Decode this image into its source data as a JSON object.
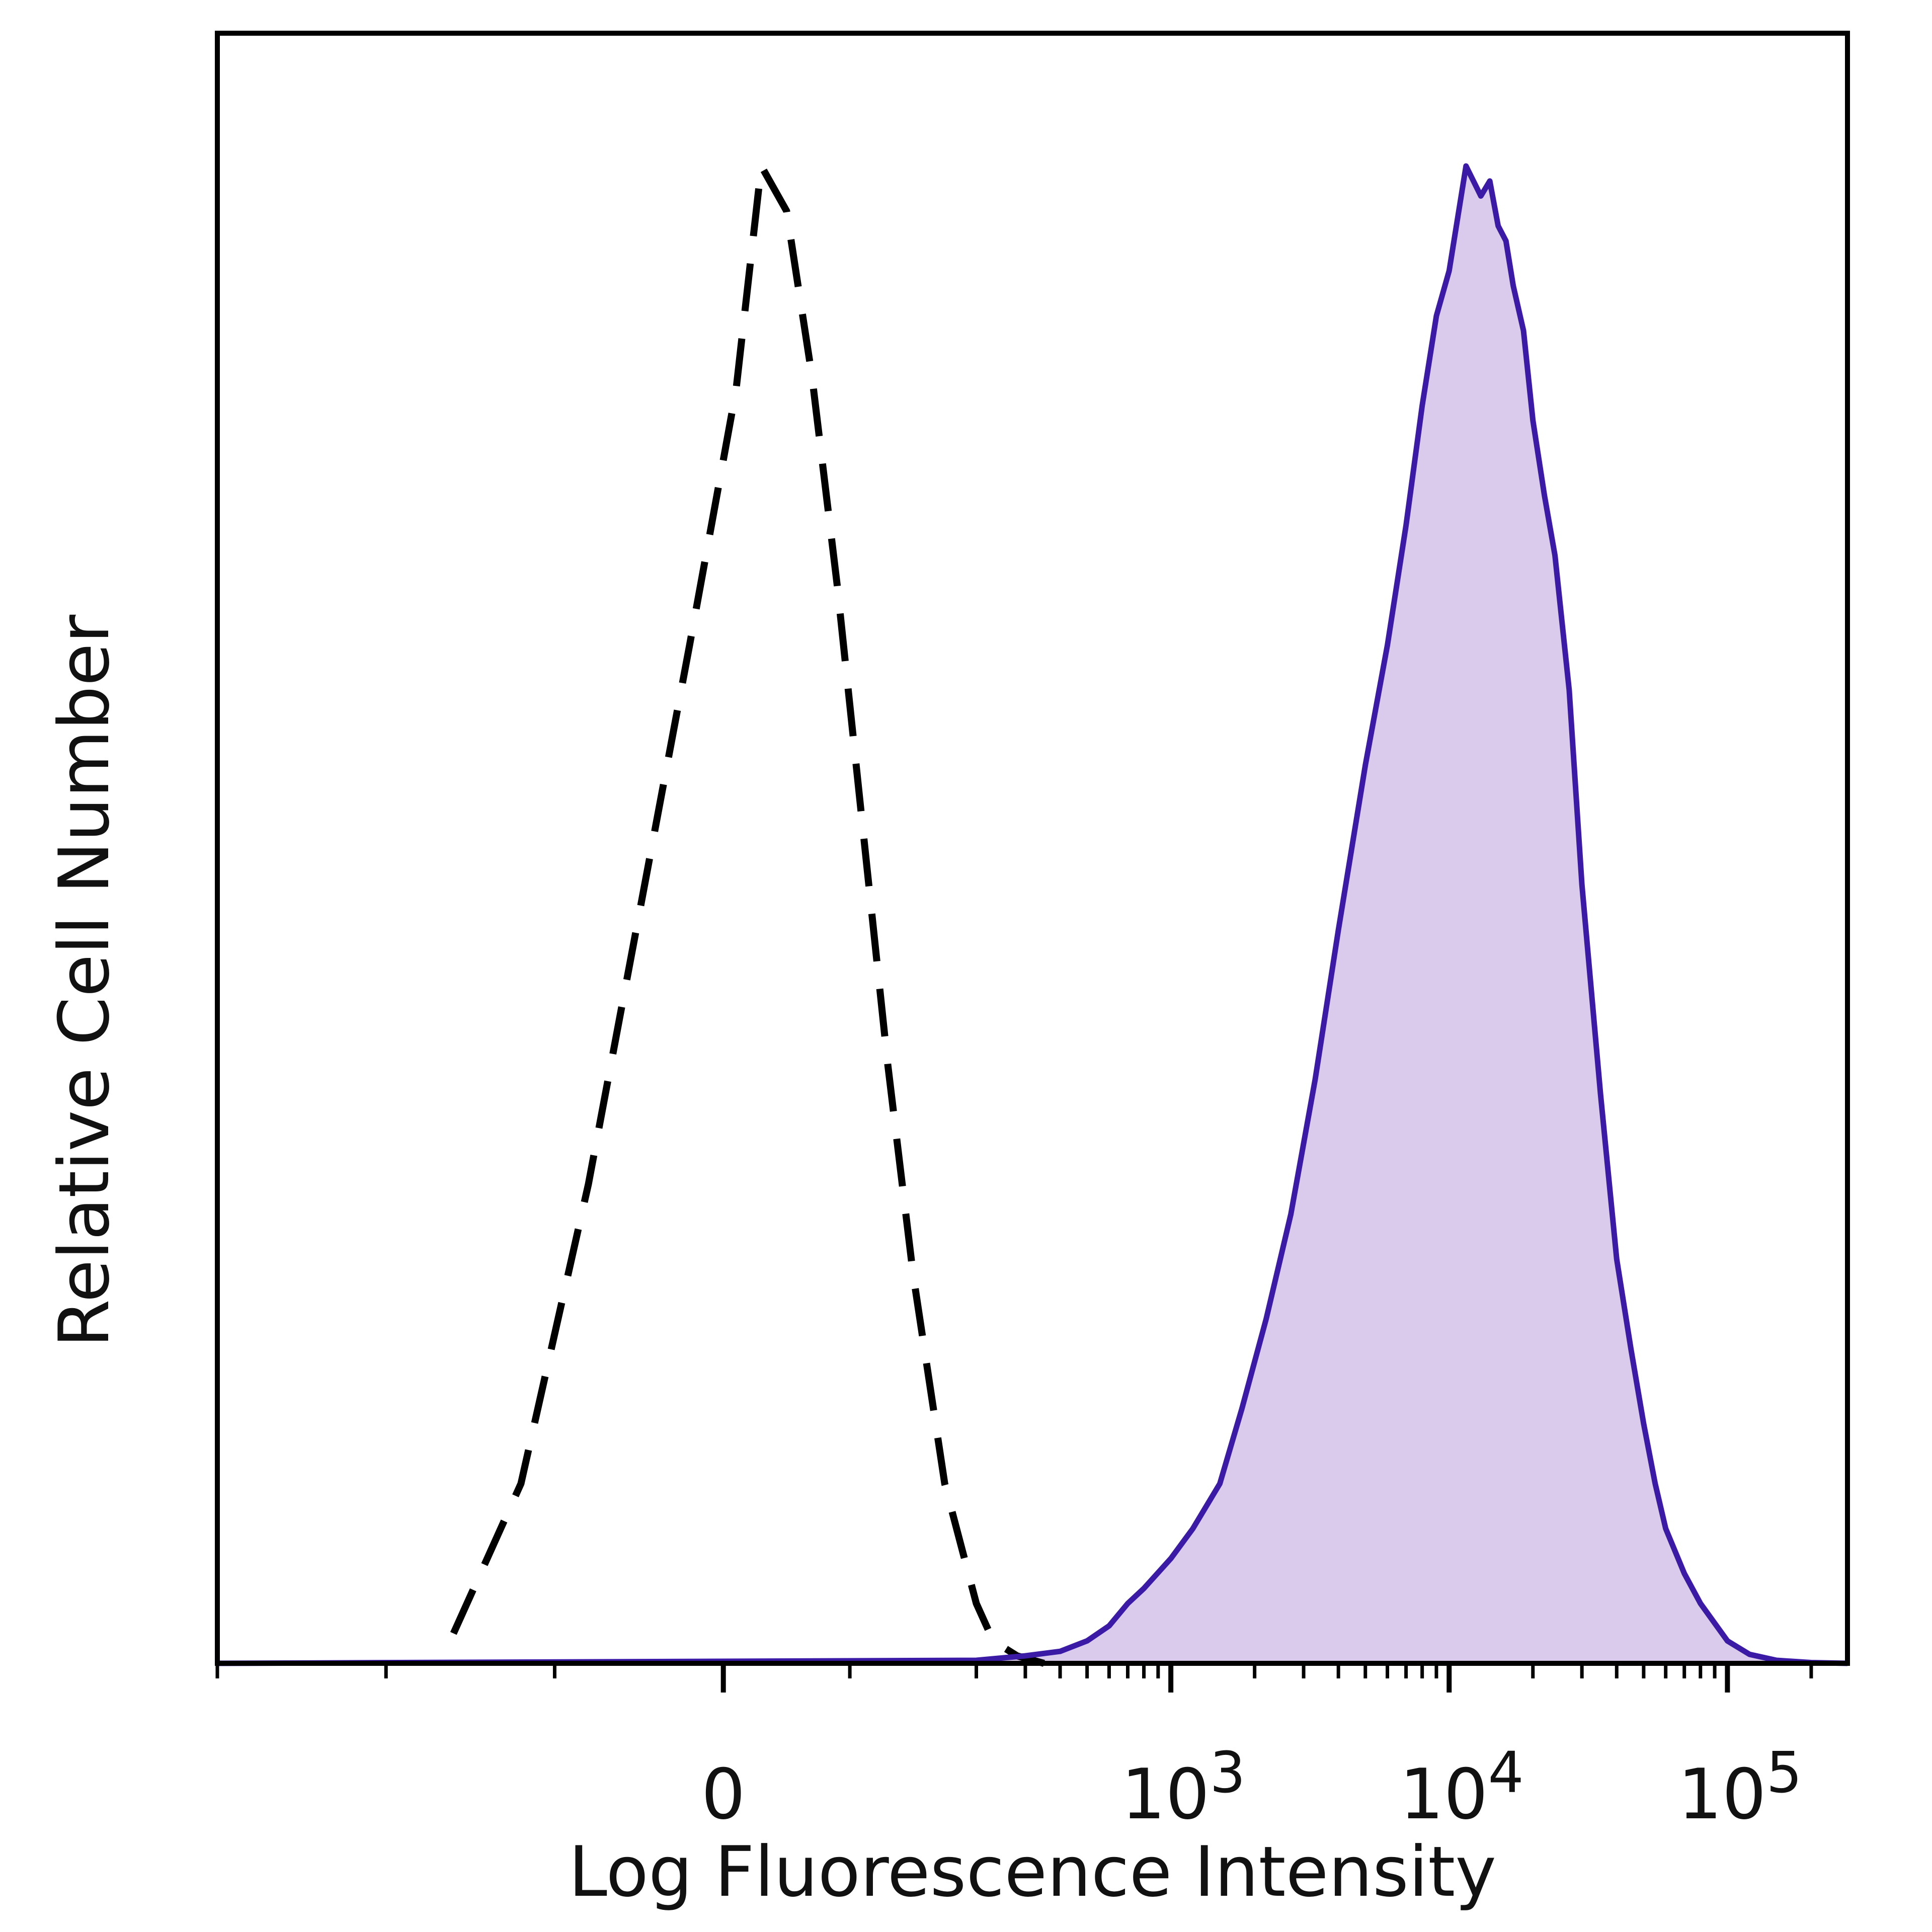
{
  "chart_data": {
    "type": "area",
    "title": "",
    "xlabel": "Log Fluorescence Intensity",
    "ylabel": "Relative Cell Number",
    "x_scale": "biexponential",
    "xlim": [
      -300,
      270000
    ],
    "ylim": [
      0,
      100
    ],
    "y_ticks_shown": false,
    "grid": false,
    "legend": "none",
    "x_ticks": [
      {
        "value": 0,
        "base": "0",
        "exp": ""
      },
      {
        "value": 1000,
        "base": "10",
        "exp": "3"
      },
      {
        "value": 10000,
        "base": "10",
        "exp": "4"
      },
      {
        "value": 100000,
        "base": "10",
        "exp": "5"
      }
    ],
    "series": [
      {
        "style": "dashed",
        "color": "#000000",
        "fill": "none",
        "x": [
          -160,
          -120,
          -80,
          -50,
          -20,
          10,
          30,
          50,
          70,
          90,
          110,
          130,
          150,
          175,
          200,
          230,
          280,
          350
        ],
        "y": [
          2,
          12,
          32,
          50,
          68,
          85,
          100,
          97,
          86,
          72,
          56,
          40,
          26,
          12,
          4,
          1.5,
          0.5,
          0
        ]
      },
      {
        "style": "solid",
        "color": "#3b1aa6",
        "fill": "#dacbec",
        "x": [
          -300,
          200,
          300,
          400,
          500,
          600,
          700,
          800,
          1000,
          1200,
          1500,
          1800,
          2200,
          2700,
          3300,
          4000,
          5000,
          6000,
          7000,
          8000,
          9000,
          10000,
          11500,
          13000,
          14000,
          15000,
          16000,
          17000,
          18500,
          20000,
          22000,
          24000,
          27000,
          30000,
          35000,
          40000,
          45000,
          50000,
          55000,
          60000,
          70000,
          80000,
          100000,
          120000,
          150000,
          200000,
          270000
        ],
        "y": [
          0,
          0.2,
          0.5,
          0.8,
          1.5,
          2.5,
          4,
          5,
          7,
          9,
          12,
          17,
          23,
          30,
          39,
          49,
          60,
          68,
          76,
          84,
          90,
          93,
          100,
          98,
          99,
          96,
          95,
          92,
          89,
          83,
          78,
          74,
          65,
          52,
          38,
          27,
          21,
          16,
          12,
          9,
          6,
          4,
          1.5,
          0.6,
          0.2,
          0.05,
          0
        ]
      }
    ]
  }
}
